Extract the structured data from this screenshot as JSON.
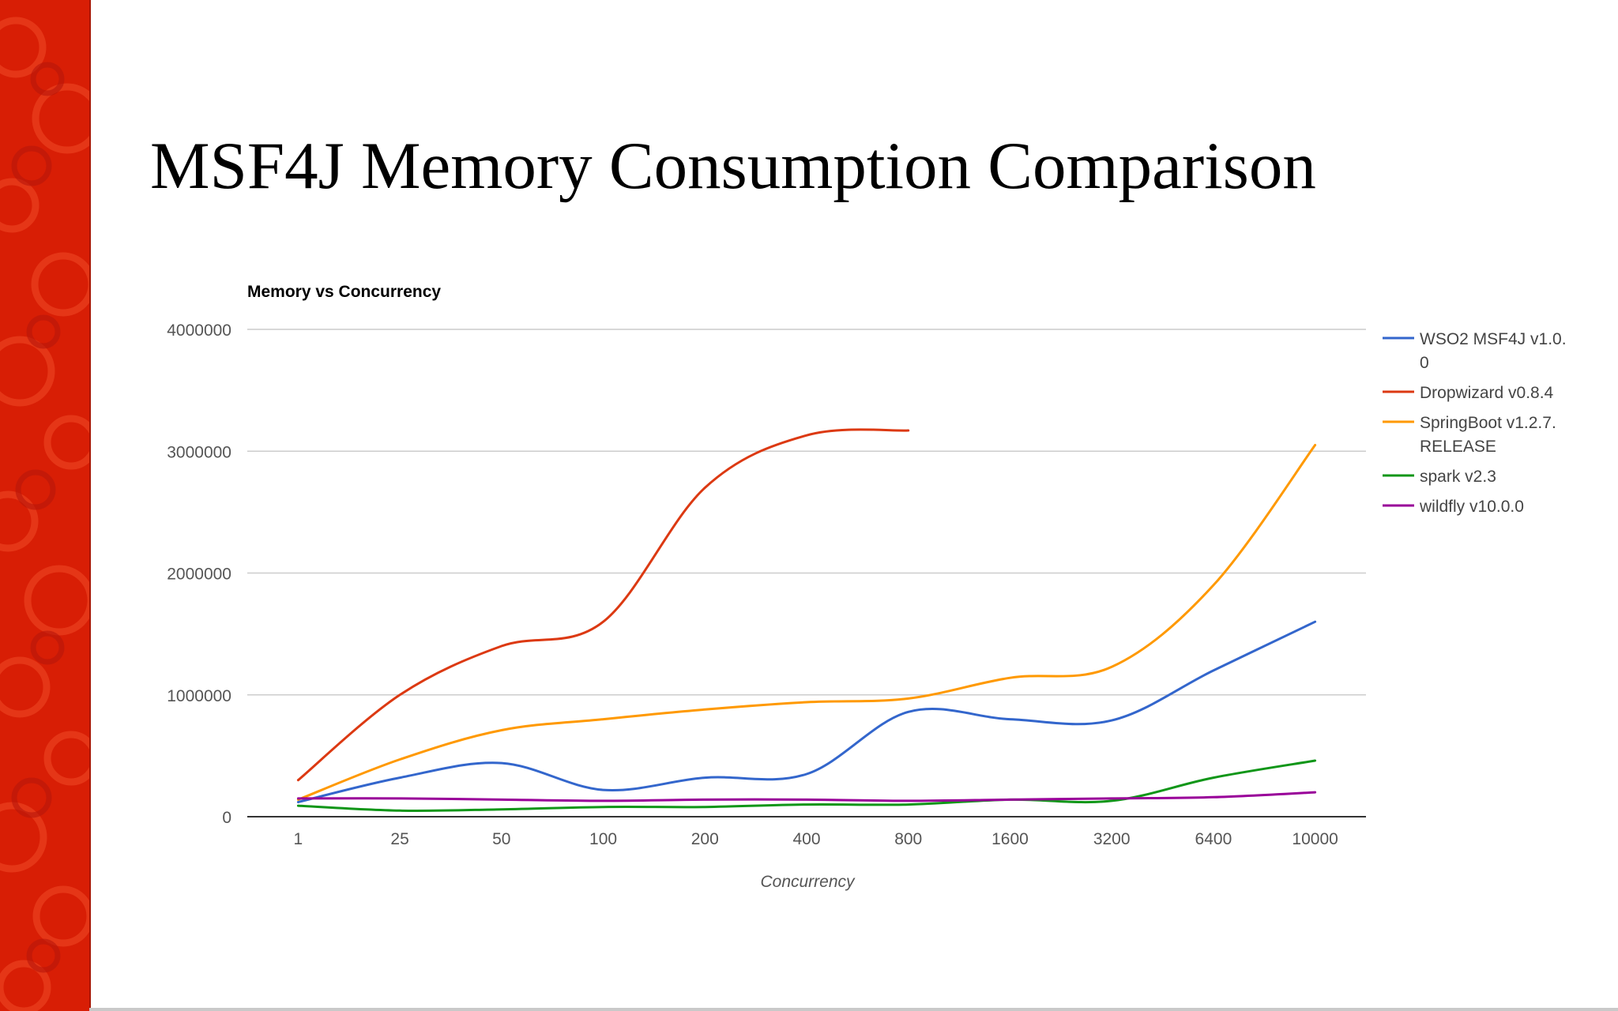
{
  "slide": {
    "title": "MSF4J Memory Consumption Comparison",
    "band_color": "#d81e05"
  },
  "chart_data": {
    "type": "line",
    "title": "Memory vs Concurrency",
    "xlabel": "Concurrency",
    "ylabel": "",
    "categories": [
      "1",
      "25",
      "50",
      "100",
      "200",
      "400",
      "800",
      "1600",
      "3200",
      "6400",
      "10000"
    ],
    "ylim": [
      0,
      4000000
    ],
    "yticks": [
      0,
      1000000,
      2000000,
      3000000,
      4000000
    ],
    "grid": true,
    "legend": "right",
    "series": [
      {
        "name": "WSO2 MSF4J v1.0.0",
        "color": "#3366cc",
        "values": [
          120000,
          320000,
          440000,
          220000,
          320000,
          350000,
          860000,
          800000,
          790000,
          1200000,
          1600000
        ]
      },
      {
        "name": "Dropwizard v0.8.4",
        "color": "#dc3912",
        "values": [
          300000,
          1000000,
          1400000,
          1600000,
          2700000,
          3130000,
          3170000,
          null,
          null,
          null,
          null
        ]
      },
      {
        "name": "SpringBoot v1.2.7.RELEASE",
        "color": "#ff9900",
        "values": [
          140000,
          470000,
          710000,
          800000,
          880000,
          940000,
          970000,
          1140000,
          1230000,
          1900000,
          3050000
        ]
      },
      {
        "name": "spark v2.3",
        "color": "#109618",
        "values": [
          90000,
          50000,
          60000,
          80000,
          80000,
          100000,
          100000,
          140000,
          130000,
          320000,
          460000
        ]
      },
      {
        "name": "wildfly v10.0.0",
        "color": "#990099",
        "values": [
          150000,
          150000,
          140000,
          130000,
          140000,
          140000,
          130000,
          140000,
          150000,
          160000,
          200000
        ]
      }
    ],
    "legend_lines": [
      [
        "WSO2 MSF4J v1.0.",
        "0"
      ],
      [
        "Dropwizard v0.8.4"
      ],
      [
        "SpringBoot v1.2.7.",
        "RELEASE"
      ],
      [
        "spark v2.3"
      ],
      [
        "wildfly v10.0.0"
      ]
    ]
  }
}
